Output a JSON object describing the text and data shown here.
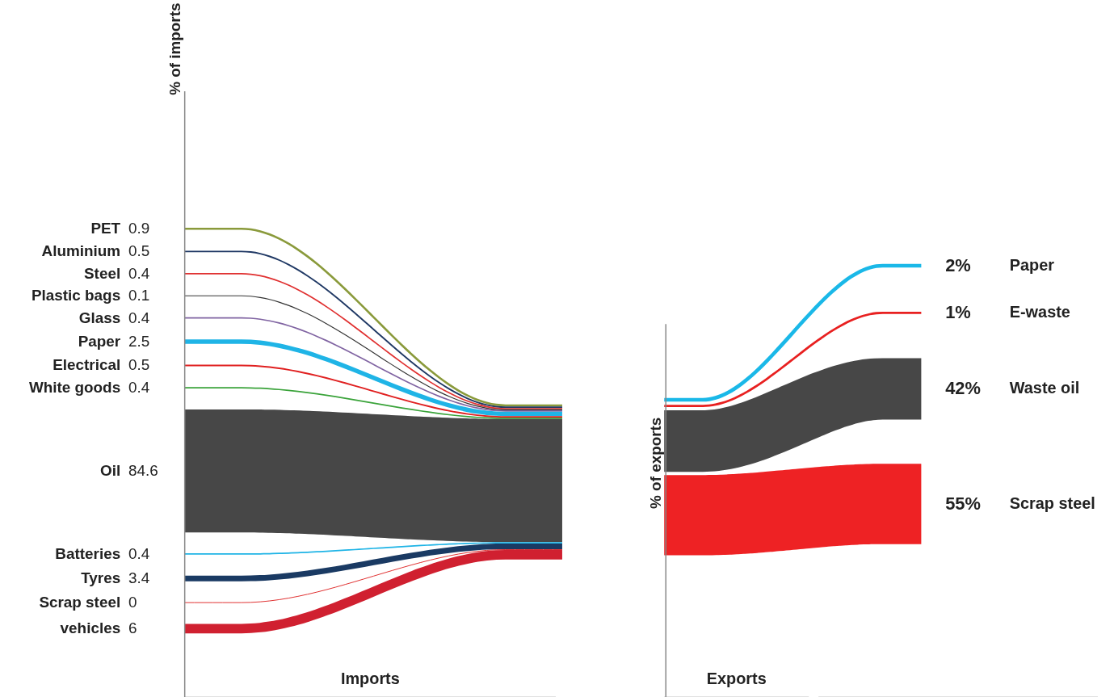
{
  "chart_data": [
    {
      "type": "other",
      "ylabel": "% of imports",
      "xlabel": "Imports",
      "data_labels": true,
      "categories": [
        "PET",
        "Aluminium",
        "Steel",
        "Plastic bags",
        "Glass",
        "Paper",
        "Electrical",
        "White goods",
        "Oil",
        "Batteries",
        "Tyres",
        "Scrap steel",
        "vehicles"
      ],
      "values": [
        0.9,
        0.5,
        0.4,
        0.1,
        0.4,
        2.5,
        0.5,
        0.4,
        84.6,
        0.4,
        3.4,
        0,
        6
      ],
      "colors": [
        "#8a9a3b",
        "#1f3864",
        "#e03030",
        "#333333",
        "#8064a2",
        "#1fb4e6",
        "#e02020",
        "#3aa33a",
        "#474747",
        "#1fb4e6",
        "#1a3a63",
        "#e03030",
        "#d02030"
      ]
    },
    {
      "type": "other",
      "ylabel": "% of exports",
      "xlabel": "Exports",
      "categories": [
        "Paper",
        "E-waste",
        "Waste oil",
        "Scrap steel"
      ],
      "values": [
        2,
        1,
        42,
        55
      ],
      "value_labels": [
        "2%",
        "1%",
        "42%",
        "55%"
      ],
      "colors": [
        "#1ab8e8",
        "#e82020",
        "#474747",
        "#ee2224"
      ]
    }
  ]
}
